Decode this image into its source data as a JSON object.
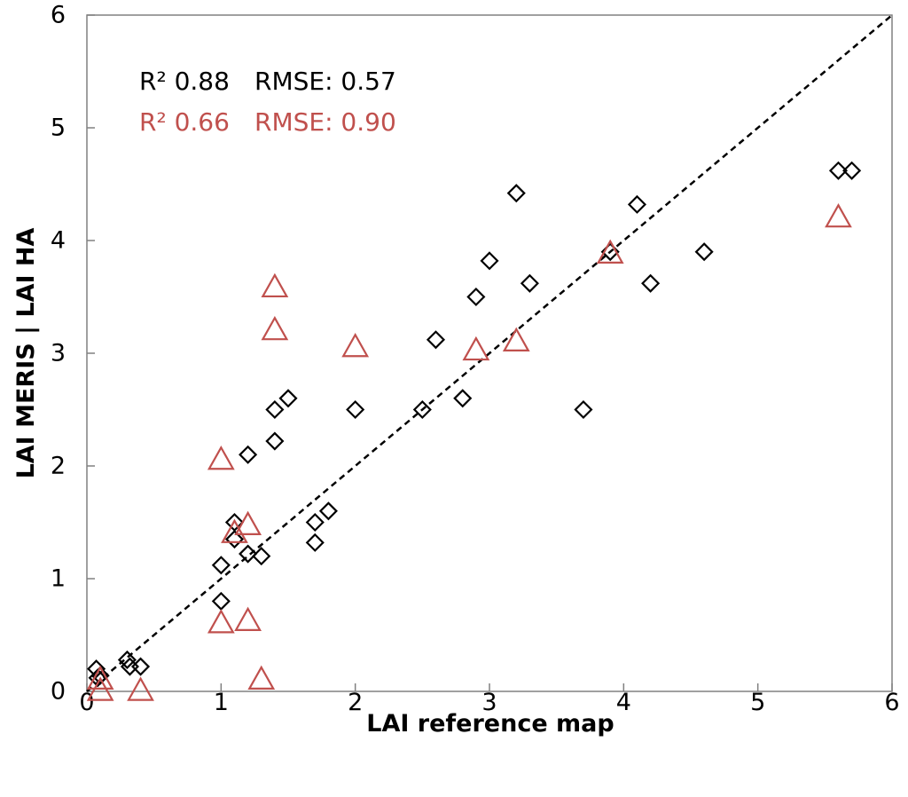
{
  "chart_data": {
    "type": "scatter",
    "xlabel": "LAI reference map",
    "ylabel": "LAI MERIS | LAI HA",
    "xlim": [
      0,
      6
    ],
    "ylim": [
      0,
      6
    ],
    "x_ticks": [
      "0",
      "1",
      "2",
      "3",
      "4",
      "5",
      "6"
    ],
    "y_ticks": [
      "0",
      "1",
      "2",
      "3",
      "4",
      "5",
      "6"
    ],
    "grid": false,
    "reference_line": {
      "style": "dashed",
      "color": "#000000",
      "from": [
        0,
        0
      ],
      "to": [
        6,
        6
      ]
    },
    "annotations": [
      {
        "r2_label": "R² 0.88",
        "rmse_label": "RMSE: 0.57",
        "color": "#000000"
      },
      {
        "r2_label": "R² 0.66",
        "rmse_label": "RMSE: 0.90",
        "color": "#C0504D"
      }
    ],
    "series": [
      {
        "marker": "diamond",
        "color": "#000000",
        "points": [
          [
            0.07,
            0.2
          ],
          [
            0.08,
            0.12
          ],
          [
            0.1,
            0.14
          ],
          [
            0.3,
            0.28
          ],
          [
            0.32,
            0.22
          ],
          [
            0.4,
            0.22
          ],
          [
            1.0,
            0.8
          ],
          [
            1.0,
            1.12
          ],
          [
            1.1,
            1.5
          ],
          [
            1.1,
            1.35
          ],
          [
            1.2,
            2.1
          ],
          [
            1.2,
            1.22
          ],
          [
            1.3,
            1.2
          ],
          [
            1.4,
            2.22
          ],
          [
            1.4,
            2.5
          ],
          [
            1.5,
            2.6
          ],
          [
            1.7,
            1.5
          ],
          [
            1.7,
            1.32
          ],
          [
            1.8,
            1.6
          ],
          [
            2.0,
            2.5
          ],
          [
            2.5,
            2.5
          ],
          [
            2.6,
            3.12
          ],
          [
            2.8,
            2.6
          ],
          [
            2.9,
            3.5
          ],
          [
            3.0,
            3.82
          ],
          [
            3.2,
            4.42
          ],
          [
            3.3,
            3.62
          ],
          [
            3.7,
            2.5
          ],
          [
            3.9,
            3.9
          ],
          [
            4.1,
            4.32
          ],
          [
            4.2,
            3.62
          ],
          [
            4.6,
            3.9
          ],
          [
            5.6,
            4.62
          ],
          [
            5.7,
            4.62
          ]
        ]
      },
      {
        "marker": "triangle",
        "color": "#C0504D",
        "points": [
          [
            0.1,
            0.0
          ],
          [
            0.1,
            0.1
          ],
          [
            0.4,
            0.0
          ],
          [
            1.0,
            2.05
          ],
          [
            1.0,
            0.6
          ],
          [
            1.1,
            1.4
          ],
          [
            1.2,
            1.47
          ],
          [
            1.2,
            0.62
          ],
          [
            1.3,
            0.1
          ],
          [
            1.4,
            3.58
          ],
          [
            1.4,
            3.2
          ],
          [
            2.0,
            3.05
          ],
          [
            2.9,
            3.02
          ],
          [
            3.2,
            3.1
          ],
          [
            3.9,
            3.88
          ],
          [
            5.6,
            4.2
          ]
        ]
      }
    ]
  }
}
